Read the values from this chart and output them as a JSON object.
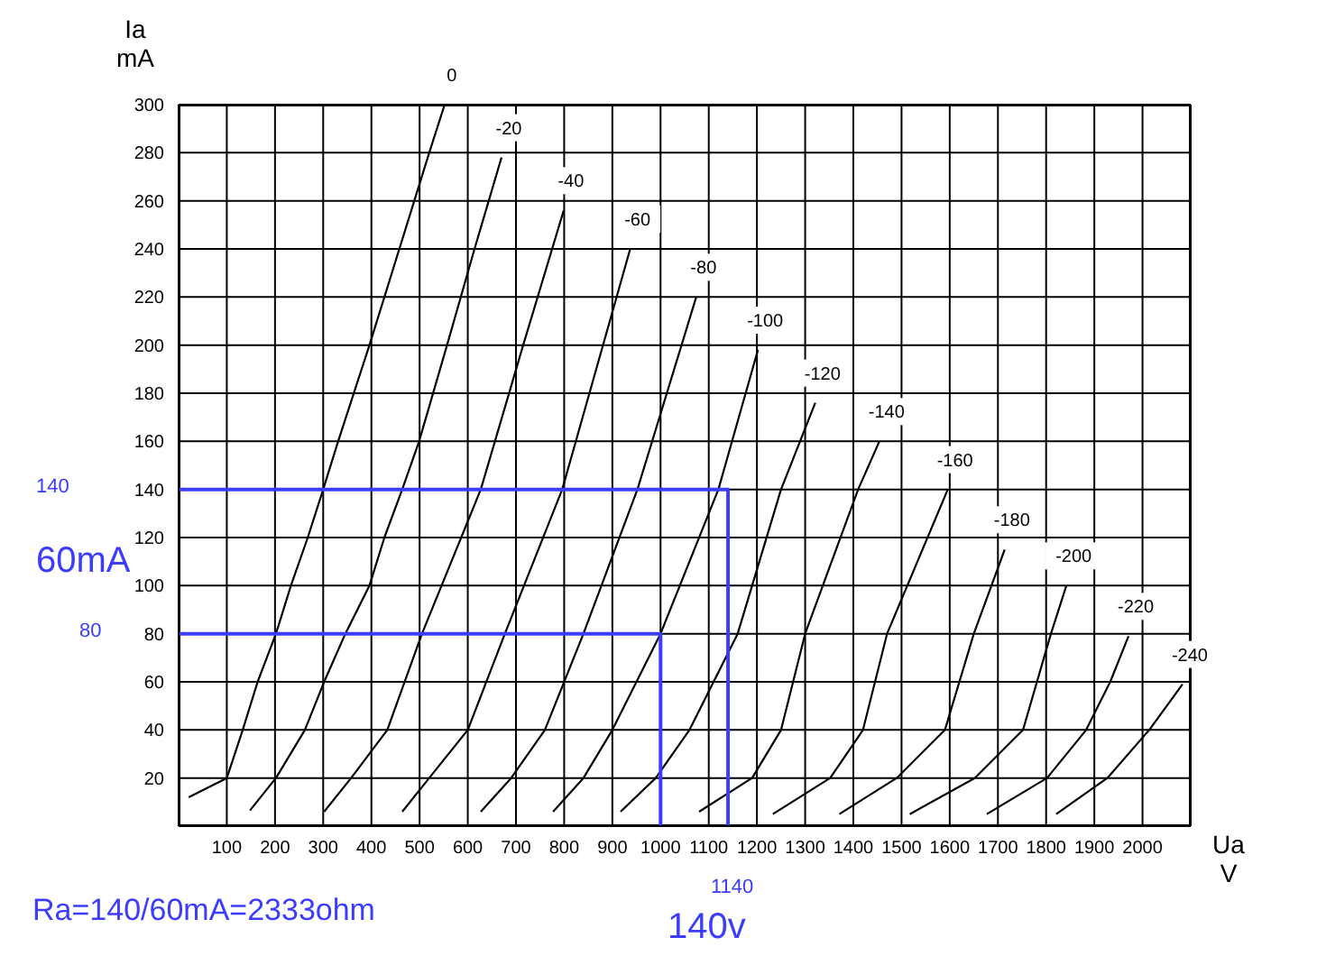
{
  "chart_data": {
    "type": "line",
    "xlabel": "Ua V",
    "ylabel": "Ia mA",
    "xlim": [
      0,
      2100
    ],
    "ylim": [
      0,
      300
    ],
    "xticks": [
      100,
      200,
      300,
      400,
      500,
      600,
      700,
      800,
      900,
      1000,
      1100,
      1200,
      1300,
      1400,
      1500,
      1600,
      1700,
      1800,
      1900,
      2000
    ],
    "yticks": [
      20,
      40,
      60,
      80,
      100,
      120,
      140,
      160,
      180,
      200,
      220,
      240,
      260,
      280,
      300
    ],
    "grid": true,
    "marker": "none",
    "series": [
      {
        "name": "0",
        "color": "#000000",
        "x": [
          21,
          100,
          133,
          164,
          202,
          233,
          268,
          300,
          331,
          396,
          458,
          520,
          552
        ],
        "values": [
          12,
          20,
          40,
          60,
          80,
          100,
          120,
          140,
          160,
          200,
          240,
          280,
          300
        ]
      },
      {
        "name": "-20",
        "color": "#000000",
        "x": [
          148,
          202,
          262,
          302,
          346,
          396,
          427,
          464,
          499,
          557,
          614,
          670
        ],
        "values": [
          6.5,
          20,
          40,
          60,
          80,
          100,
          120,
          140,
          160,
          200,
          240,
          278
        ]
      },
      {
        "name": "-40",
        "color": "#000000",
        "x": [
          302,
          358,
          433,
          505,
          627,
          715,
          799
        ],
        "values": [
          6,
          20,
          40,
          80,
          140,
          200,
          256
        ]
      },
      {
        "name": "-60",
        "color": "#000000",
        "x": [
          464,
          520,
          600,
          677,
          796,
          937
        ],
        "values": [
          6,
          20,
          40,
          80,
          140,
          240
        ]
      },
      {
        "name": "-80",
        "color": "#000000",
        "x": [
          627,
          690,
          760,
          840,
          952,
          1074
        ],
        "values": [
          6,
          20,
          40,
          80,
          140,
          220
        ]
      },
      {
        "name": "-100",
        "color": "#000000",
        "x": [
          777,
          840,
          900,
          1000,
          1120,
          1202
        ],
        "values": [
          6,
          20,
          40,
          80,
          140,
          198
        ]
      },
      {
        "name": "-120",
        "color": "#000000",
        "x": [
          917,
          990,
          1060,
          1160,
          1250,
          1321
        ],
        "values": [
          6,
          20,
          40,
          80,
          140,
          176
        ]
      },
      {
        "name": "-140",
        "color": "#000000",
        "x": [
          1080,
          1190,
          1250,
          1300,
          1410,
          1454
        ],
        "values": [
          6,
          20,
          40,
          80,
          140,
          160
        ]
      },
      {
        "name": "-160",
        "color": "#000000",
        "x": [
          1233,
          1352,
          1420,
          1470,
          1596
        ],
        "values": [
          5,
          20,
          40,
          80,
          140
        ]
      },
      {
        "name": "-180",
        "color": "#000000",
        "x": [
          1371,
          1490,
          1590,
          1650,
          1714
        ],
        "values": [
          5,
          20,
          40,
          80,
          115
        ]
      },
      {
        "name": "-200",
        "color": "#000000",
        "x": [
          1517,
          1652,
          1752,
          1810,
          1842
        ],
        "values": [
          5,
          20,
          40,
          80,
          100
        ]
      },
      {
        "name": "-220",
        "color": "#000000",
        "x": [
          1677,
          1802,
          1883,
          1933,
          1971
        ],
        "values": [
          5,
          20,
          40,
          60,
          79
        ]
      },
      {
        "name": "-240",
        "color": "#000000",
        "x": [
          1821,
          1927,
          2014,
          2083
        ],
        "values": [
          5,
          20,
          40,
          59
        ]
      },
      {
        "type": "line",
        "color": "#3c3cff",
        "x": [
          0,
          1140,
          1140
        ],
        "values": [
          140,
          140,
          0
        ]
      },
      {
        "type": "line",
        "color": "#3c3cff",
        "x": [
          0,
          1000,
          1000
        ],
        "values": [
          80,
          80,
          0
        ]
      }
    ],
    "annotations": [
      "140",
      "80",
      "1140",
      "60mA",
      "140v",
      "Ra=140/60mA=2333ohm"
    ]
  }
}
